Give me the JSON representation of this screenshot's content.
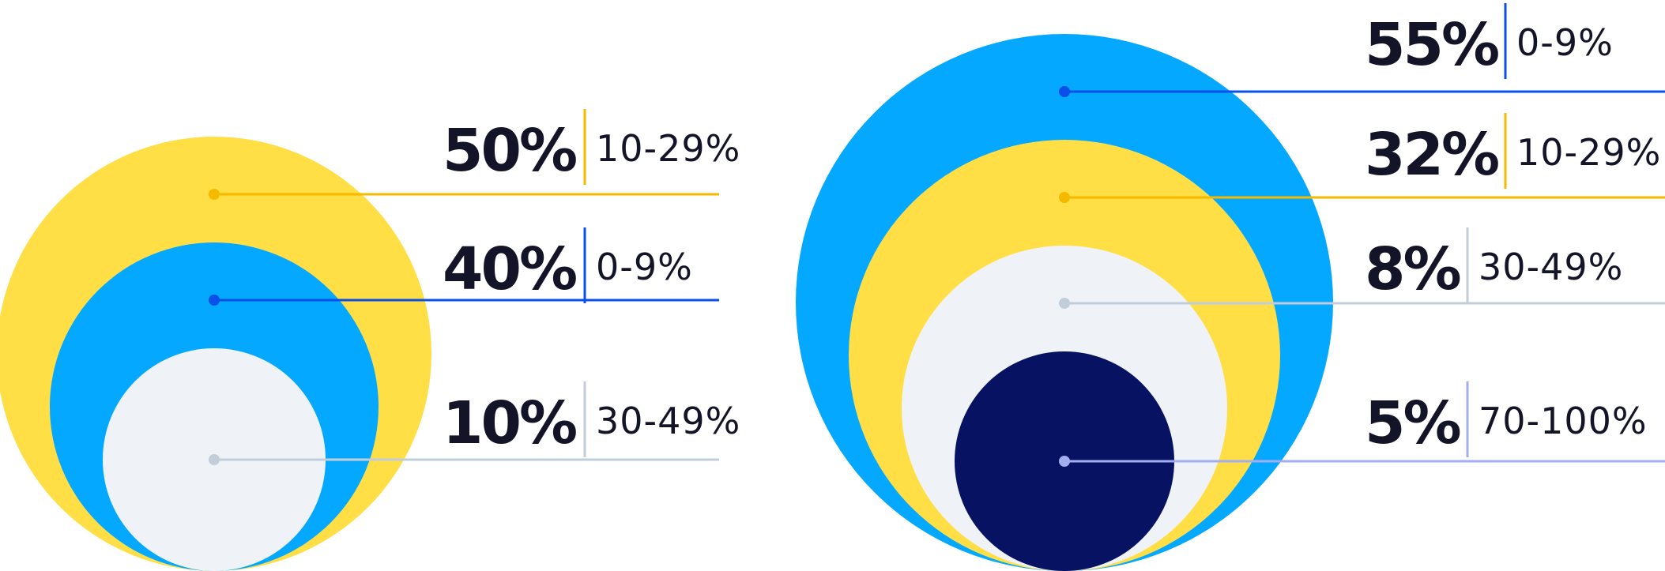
{
  "chart_data": [
    {
      "type": "nested-circle",
      "title": "",
      "series": [
        {
          "value": 50,
          "label": "50%",
          "range": "10-29%",
          "color": "#FFDF45",
          "accent": "#F5B900"
        },
        {
          "value": 40,
          "label": "40%",
          "range": "0-9%",
          "color": "#05A8FF",
          "accent": "#0A4FE8"
        },
        {
          "value": 10,
          "label": "10%",
          "range": "30-49%",
          "color": "#EFF3F8",
          "accent": "#C2CDD9"
        }
      ]
    },
    {
      "type": "nested-circle",
      "title": "",
      "series": [
        {
          "value": 55,
          "label": "55%",
          "range": "0-9%",
          "color": "#05A8FF",
          "accent": "#0A4FE8"
        },
        {
          "value": 32,
          "label": "32%",
          "range": "10-29%",
          "color": "#FFDF45",
          "accent": "#F5B900"
        },
        {
          "value": 8,
          "label": "8%",
          "range": "30-49%",
          "color": "#EFF3F8",
          "accent": "#C2CDD9"
        },
        {
          "value": 5,
          "label": "5%",
          "range": "70-100%",
          "color": "#071263",
          "accent": "#A3AEF0"
        }
      ]
    }
  ]
}
